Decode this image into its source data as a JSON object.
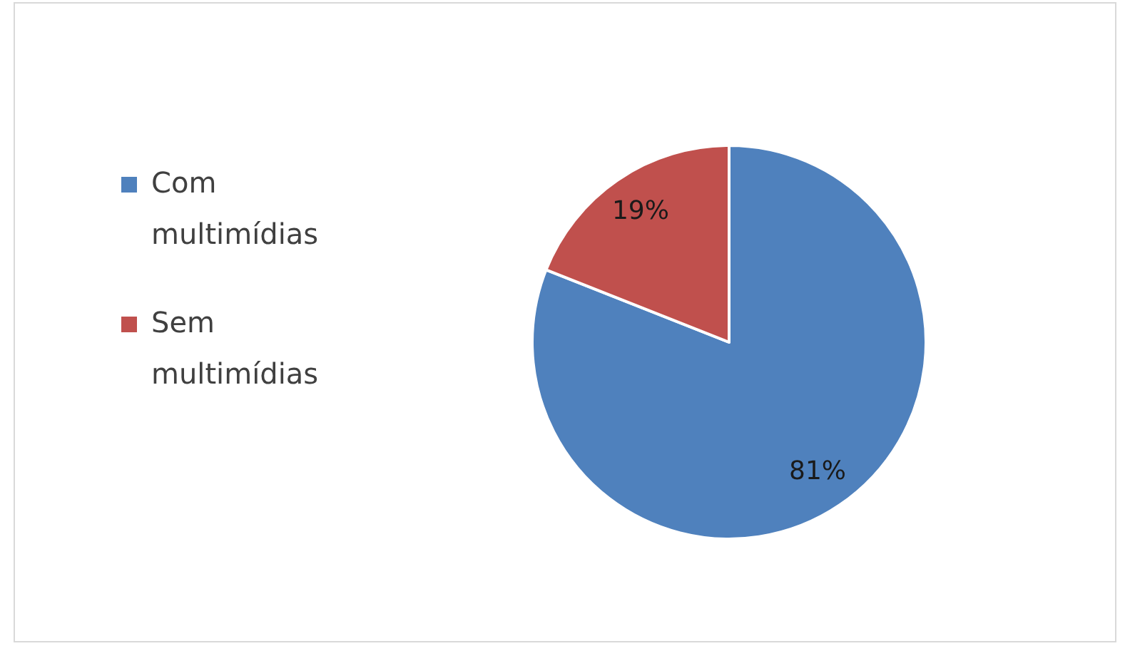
{
  "chart_data": {
    "type": "pie",
    "categories": [
      "Com multimídias",
      "Sem multimídias"
    ],
    "values": [
      81,
      19
    ],
    "colors": [
      "#4f81bd",
      "#c0504d"
    ],
    "value_labels": [
      "81%",
      "19%"
    ],
    "legend": "left"
  }
}
